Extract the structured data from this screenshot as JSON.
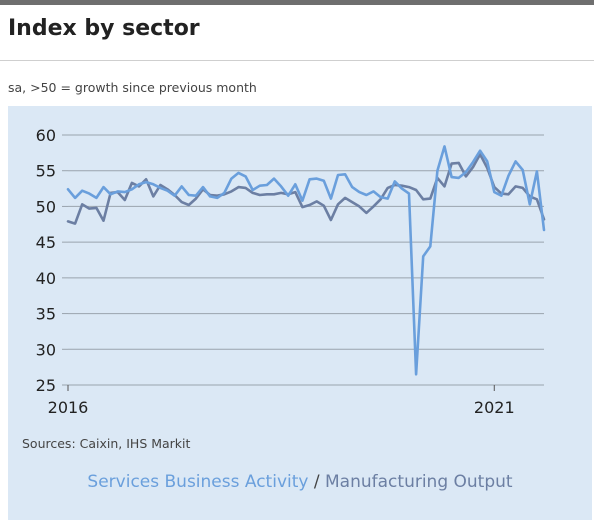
{
  "header": {
    "title": "Index by sector",
    "subtitle": "sa, >50 = growth since previous month"
  },
  "footer": {
    "sources": "Sources: Caixin, IHS Markit",
    "legend_separator": " / "
  },
  "colors": {
    "panel_bg": "#dbe8f5",
    "grid": "#9aa3ad",
    "axis_text": "#222222",
    "services": "#6a9fdc",
    "manufacturing": "#6c7fa3"
  },
  "chart_data": {
    "type": "line",
    "title": "Index by sector",
    "subtitle": "sa, >50 = growth since previous month",
    "xlabel": "",
    "ylabel": "",
    "x_start": "2016-01",
    "frequency": "monthly",
    "xticks": [
      {
        "label": "2016",
        "index": 0
      },
      {
        "label": "2021",
        "index": 60
      }
    ],
    "ylim": [
      25,
      60
    ],
    "yticks": [
      25,
      30,
      35,
      40,
      45,
      50,
      55,
      60
    ],
    "grid": true,
    "legend": "bottom-center",
    "series": [
      {
        "name": "Services Business Activity",
        "color": "#6a9fdc",
        "values": [
          52.4,
          51.2,
          52.2,
          51.8,
          51.2,
          52.7,
          51.7,
          52.1,
          52.0,
          52.4,
          53.1,
          53.4,
          53.1,
          52.6,
          52.2,
          51.5,
          52.8,
          51.6,
          51.5,
          52.7,
          51.4,
          51.2,
          51.9,
          53.9,
          54.7,
          54.2,
          52.3,
          52.9,
          53.0,
          53.9,
          52.8,
          51.5,
          53.1,
          50.8,
          53.8,
          53.9,
          53.6,
          51.1,
          54.4,
          54.5,
          52.7,
          52.0,
          51.6,
          52.1,
          51.3,
          51.1,
          53.5,
          52.5,
          51.8,
          26.5,
          43.0,
          44.4,
          55.0,
          58.4,
          54.1,
          54.0,
          54.8,
          56.2,
          57.8,
          56.3,
          52.0,
          51.5,
          54.3,
          56.3,
          55.1,
          50.3,
          54.9,
          46.7
        ]
      },
      {
        "name": "Manufacturing Output",
        "color": "#6c7fa3",
        "values": [
          47.9,
          47.6,
          50.3,
          49.7,
          49.8,
          48.0,
          51.9,
          52.0,
          50.9,
          53.3,
          52.8,
          53.8,
          51.4,
          53.0,
          52.4,
          51.6,
          50.6,
          50.2,
          51.1,
          52.4,
          51.6,
          51.5,
          51.7,
          52.1,
          52.7,
          52.6,
          51.9,
          51.6,
          51.7,
          51.7,
          51.9,
          51.7,
          52.0,
          49.9,
          50.2,
          50.7,
          50.1,
          48.1,
          50.3,
          51.2,
          50.6,
          50.0,
          49.1,
          50.0,
          51.0,
          52.6,
          53.0,
          52.9,
          52.7,
          52.3,
          51.0,
          51.1,
          54.0,
          52.8,
          56.0,
          56.1,
          54.2,
          55.5,
          57.3,
          55.4,
          52.7,
          51.8,
          51.7,
          52.8,
          52.6,
          51.4,
          51.0,
          48.2
        ]
      }
    ]
  }
}
